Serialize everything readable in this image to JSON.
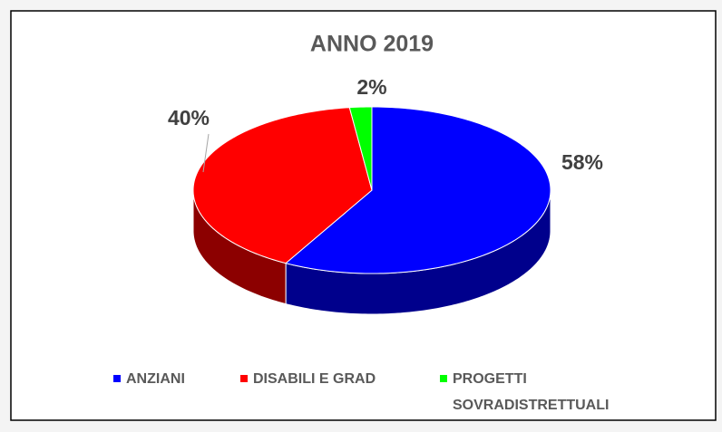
{
  "chart_data": {
    "type": "pie3d",
    "title": "ANNO 2019",
    "categories": [
      "ANZIANI",
      "DISABILI E GRAD",
      "PROGETTI SOVRADISTRETTUALI"
    ],
    "values": [
      58,
      40,
      2
    ],
    "value_labels": [
      "58%",
      "40%",
      "2%"
    ],
    "colors": [
      "#0000ff",
      "#ff0000",
      "#00ff00"
    ],
    "legend": "bottom"
  }
}
